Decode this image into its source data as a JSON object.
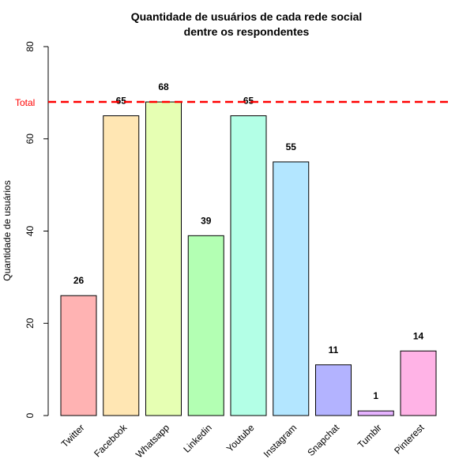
{
  "chart_data": {
    "type": "bar",
    "title": [
      "Quantidade de usuários de cada rede social",
      "dentre os respondentes"
    ],
    "xlabel": "",
    "ylabel": "Quantidade de usuários",
    "ylim": [
      0,
      80
    ],
    "yticks": [
      0,
      20,
      40,
      60,
      80
    ],
    "categories": [
      "Twitter",
      "Facebook",
      "Whatsapp",
      "Linkedin",
      "Youtube",
      "Instagram",
      "Snapchat",
      "Tumblr",
      "Pinterest"
    ],
    "values": [
      26,
      65,
      68,
      39,
      65,
      55,
      11,
      1,
      14
    ],
    "colors": [
      "#ffb3b3",
      "#ffe6b3",
      "#e6ffb3",
      "#b3ffb3",
      "#b3ffe6",
      "#b3e6ff",
      "#b3b3ff",
      "#e6b3ff",
      "#ffb3e6"
    ],
    "reference_line": {
      "label": "Total",
      "value": 68,
      "color": "#ff0000",
      "style": "dashed"
    },
    "grid": false,
    "legend": "none"
  }
}
